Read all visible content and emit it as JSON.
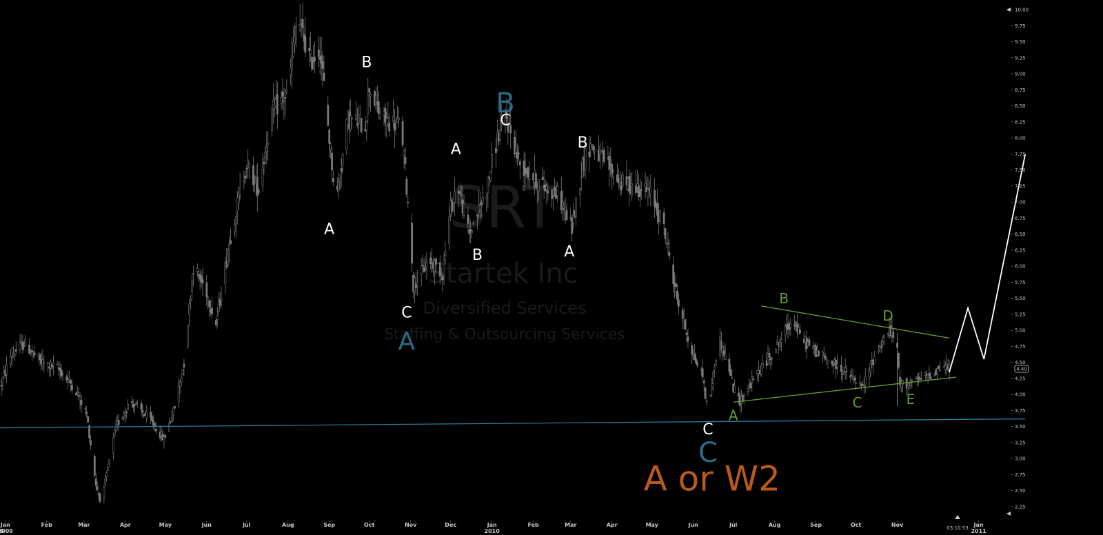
{
  "watermark": {
    "ticker": "SRT",
    "company": "Startek Inc",
    "sector": "Diversified Services",
    "industry": "Staffing & Outsourcing Services"
  },
  "clock": "03:10:53",
  "last_price_label": "4.40",
  "chart_data": {
    "type": "candlestick",
    "y_axis": {
      "min": 2.25,
      "max": 10.0,
      "step": 0.25,
      "side": "right",
      "tick_labels": [
        "2.25",
        "2.50",
        "2.75",
        "3.00",
        "3.25",
        "3.50",
        "3.75",
        "4.00",
        "4.25",
        "4.50",
        "4.75",
        "5.00",
        "5.25",
        "5.50",
        "5.75",
        "6.00",
        "6.25",
        "6.50",
        "6.75",
        "7.00",
        "7.25",
        "7.50",
        "7.75",
        "8.00",
        "8.25",
        "8.50",
        "8.75",
        "9.00",
        "9.25",
        "9.50",
        "9.75",
        "10.00"
      ]
    },
    "x_axis": {
      "start": "2008-12-28",
      "end": "2011-01-25",
      "months": [
        {
          "label": "Jan",
          "date": "2009-01-01",
          "year": "2009"
        },
        {
          "label": "Feb",
          "date": "2009-02-01"
        },
        {
          "label": "Mar",
          "date": "2009-03-01"
        },
        {
          "label": "Apr",
          "date": "2009-04-01"
        },
        {
          "label": "May",
          "date": "2009-05-01"
        },
        {
          "label": "Jun",
          "date": "2009-06-01"
        },
        {
          "label": "Jul",
          "date": "2009-07-01"
        },
        {
          "label": "Aug",
          "date": "2009-08-01"
        },
        {
          "label": "Sep",
          "date": "2009-09-01"
        },
        {
          "label": "Oct",
          "date": "2009-10-01"
        },
        {
          "label": "Nov",
          "date": "2009-11-01"
        },
        {
          "label": "Dec",
          "date": "2009-12-01"
        },
        {
          "label": "Jan",
          "date": "2010-01-01",
          "year": "2010"
        },
        {
          "label": "Feb",
          "date": "2010-02-01"
        },
        {
          "label": "Mar",
          "date": "2010-03-01"
        },
        {
          "label": "Apr",
          "date": "2010-04-01"
        },
        {
          "label": "May",
          "date": "2010-05-01"
        },
        {
          "label": "Jun",
          "date": "2010-06-01"
        },
        {
          "label": "Jul",
          "date": "2010-07-01"
        },
        {
          "label": "Aug",
          "date": "2010-08-01"
        },
        {
          "label": "Sep",
          "date": "2010-09-01"
        },
        {
          "label": "Oct",
          "date": "2010-10-01"
        },
        {
          "label": "Nov",
          "date": "2010-11-01"
        },
        {
          "label": "Jan",
          "date": "2011-01-01",
          "year": "2011"
        }
      ],
      "left_edge_label": "8"
    },
    "price_path": [
      [
        "2008-12-28",
        4.1
      ],
      [
        "2009-01-05",
        4.6
      ],
      [
        "2009-01-15",
        4.8
      ],
      [
        "2009-01-28",
        4.5
      ],
      [
        "2009-02-10",
        4.4
      ],
      [
        "2009-02-22",
        4.1
      ],
      [
        "2009-03-03",
        3.7
      ],
      [
        "2009-03-10",
        2.6
      ],
      [
        "2009-03-14",
        2.3
      ],
      [
        "2009-03-25",
        3.5
      ],
      [
        "2009-04-05",
        3.9
      ],
      [
        "2009-04-20",
        3.6
      ],
      [
        "2009-04-30",
        3.3
      ],
      [
        "2009-05-08",
        3.8
      ],
      [
        "2009-05-15",
        4.5
      ],
      [
        "2009-05-22",
        6.0
      ],
      [
        "2009-06-01",
        5.6
      ],
      [
        "2009-06-08",
        5.1
      ],
      [
        "2009-06-20",
        6.6
      ],
      [
        "2009-07-01",
        7.6
      ],
      [
        "2009-07-10",
        7.2
      ],
      [
        "2009-07-20",
        8.4
      ],
      [
        "2009-08-01",
        8.7
      ],
      [
        "2009-08-08",
        9.9
      ],
      [
        "2009-08-18",
        9.2
      ],
      [
        "2009-08-25",
        9.4
      ],
      [
        "2009-09-01",
        8.0
      ],
      [
        "2009-09-06",
        7.0
      ],
      [
        "2009-09-15",
        8.3
      ],
      [
        "2009-09-28",
        8.2
      ],
      [
        "2009-10-01",
        8.8
      ],
      [
        "2009-10-10",
        8.3
      ],
      [
        "2009-10-25",
        8.2
      ],
      [
        "2009-11-01",
        6.5
      ],
      [
        "2009-11-03",
        5.7
      ],
      [
        "2009-11-15",
        6.1
      ],
      [
        "2009-11-25",
        5.9
      ],
      [
        "2009-12-01",
        6.9
      ],
      [
        "2009-12-06",
        7.3
      ],
      [
        "2009-12-15",
        6.5
      ],
      [
        "2009-12-28",
        7.2
      ],
      [
        "2010-01-05",
        8.0
      ],
      [
        "2010-01-12",
        8.3
      ],
      [
        "2010-01-22",
        7.6
      ],
      [
        "2010-02-05",
        7.3
      ],
      [
        "2010-02-20",
        7.1
      ],
      [
        "2010-03-02",
        6.6
      ],
      [
        "2010-03-10",
        7.6
      ],
      [
        "2010-03-16",
        7.9
      ],
      [
        "2010-03-28",
        7.6
      ],
      [
        "2010-04-08",
        7.3
      ],
      [
        "2010-04-25",
        7.2
      ],
      [
        "2010-05-01",
        7.1
      ],
      [
        "2010-05-10",
        6.6
      ],
      [
        "2010-05-20",
        5.5
      ],
      [
        "2010-06-01",
        4.6
      ],
      [
        "2010-06-08",
        4.3
      ],
      [
        "2010-06-12",
        3.7
      ],
      [
        "2010-06-20",
        4.9
      ],
      [
        "2010-06-28",
        4.4
      ],
      [
        "2010-07-01",
        4.1
      ],
      [
        "2010-07-06",
        3.9
      ],
      [
        "2010-07-18",
        4.3
      ],
      [
        "2010-08-01",
        4.7
      ],
      [
        "2010-08-15",
        5.2
      ],
      [
        "2010-08-20",
        4.9
      ],
      [
        "2010-09-05",
        4.6
      ],
      [
        "2010-09-20",
        4.4
      ],
      [
        "2010-10-01",
        4.2
      ],
      [
        "2010-10-06",
        4.1
      ],
      [
        "2010-10-15",
        4.6
      ],
      [
        "2010-10-25",
        5.0
      ],
      [
        "2010-10-31",
        4.9
      ],
      [
        "2010-11-03",
        4.15
      ],
      [
        "2010-11-15",
        4.2
      ],
      [
        "2010-11-25",
        4.3
      ],
      [
        "2010-12-05",
        4.45
      ],
      [
        "2010-12-10",
        4.4
      ]
    ],
    "support_line": {
      "from": [
        "2008-12-28",
        3.48
      ],
      "to": [
        "2011-02-05",
        3.62
      ],
      "color": "#2a7b9b"
    },
    "triangle_upper": {
      "from": [
        "2010-07-22",
        5.38
      ],
      "to": [
        "2010-12-10",
        4.88
      ],
      "color": "#6a9a2e"
    },
    "triangle_lower": {
      "from": [
        "2010-07-01",
        3.88
      ],
      "to": [
        "2010-12-15",
        4.27
      ],
      "color": "#6a9a2e"
    },
    "projection": {
      "points": [
        [
          "2010-12-10",
          4.35
        ],
        [
          "2010-12-24",
          5.35
        ],
        [
          "2011-01-05",
          4.55
        ],
        [
          "2011-02-05",
          7.75
        ]
      ],
      "color": "#ffffff"
    },
    "wave_labels": [
      {
        "text": "A",
        "date": "2009-09-01",
        "price": 6.5,
        "color": "#ffffff",
        "size": 22
      },
      {
        "text": "B",
        "date": "2009-09-29",
        "price": 9.1,
        "color": "#ffffff",
        "size": 22
      },
      {
        "text": "C",
        "date": "2009-10-29",
        "price": 5.2,
        "color": "#ffffff",
        "size": 22
      },
      {
        "text": "A",
        "date": "2009-10-29",
        "price": 4.7,
        "color": "#2b6b85",
        "size": 36
      },
      {
        "text": "A",
        "date": "2009-12-05",
        "price": 7.75,
        "color": "#ffffff",
        "size": 22
      },
      {
        "text": "B",
        "date": "2009-12-21",
        "price": 6.1,
        "color": "#ffffff",
        "size": 22
      },
      {
        "text": "B",
        "date": "2010-01-11",
        "price": 8.4,
        "color": "#2b6b85",
        "size": 40
      },
      {
        "text": "C",
        "date": "2010-01-11",
        "price": 8.2,
        "color": "#ffffff",
        "size": 22
      },
      {
        "text": "B",
        "date": "2010-03-10",
        "price": 7.85,
        "color": "#ffffff",
        "size": 22
      },
      {
        "text": "A",
        "date": "2010-02-28",
        "price": 6.15,
        "color": "#ffffff",
        "size": 22
      },
      {
        "text": "C",
        "date": "2010-06-12",
        "price": 3.38,
        "color": "#ffffff",
        "size": 22
      },
      {
        "text": "C",
        "date": "2010-06-12",
        "price": 2.95,
        "color": "#2b6b85",
        "size": 40
      },
      {
        "text": "B",
        "date": "2010-08-08",
        "price": 5.42,
        "color": "#6a9a2e",
        "size": 20
      },
      {
        "text": "D",
        "date": "2010-10-25",
        "price": 5.15,
        "color": "#6a9a2e",
        "size": 20
      },
      {
        "text": "A",
        "date": "2010-07-01",
        "price": 3.6,
        "color": "#6a9a2e",
        "size": 20
      },
      {
        "text": "C",
        "date": "2010-10-02",
        "price": 3.8,
        "color": "#6a9a2e",
        "size": 20
      },
      {
        "text": "E",
        "date": "2010-11-11",
        "price": 3.85,
        "color": "#6a9a2e",
        "size": 20
      }
    ],
    "big_label": {
      "text": "A or W2",
      "date": "2010-06-15",
      "price": 2.5,
      "color": "#b85a1c",
      "size": 50
    }
  }
}
